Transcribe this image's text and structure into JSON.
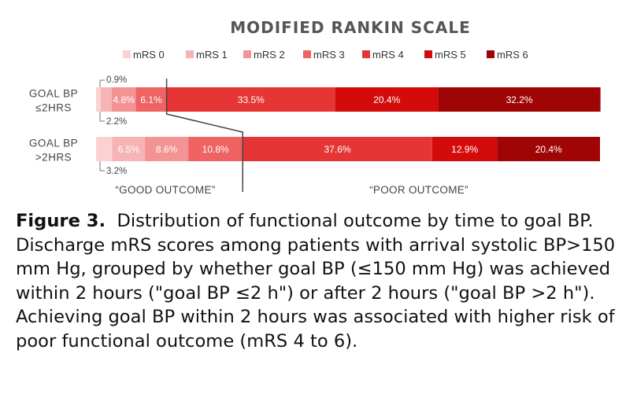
{
  "chart_data": {
    "type": "bar",
    "orientation": "horizontal-stacked-percent",
    "title": "MODIFIED RANKIN SCALE",
    "legend": [
      "mRS 0",
      "mRS 1",
      "mRS 2",
      "mRS 3",
      "mRS 4",
      "mRS 5",
      "mRS 6"
    ],
    "legend_position": "top",
    "colors": [
      "#fad2d2",
      "#f6b4b4",
      "#f39393",
      "#ef6363",
      "#e63535",
      "#d40b0b",
      "#a00505"
    ],
    "categories": [
      {
        "line1": "GOAL BP",
        "line2": "≤2HRS"
      },
      {
        "line1": "GOAL BP",
        "line2": ">2HRS"
      }
    ],
    "series": [
      {
        "name": "mRS 0",
        "values": [
          0.9,
          3.2
        ]
      },
      {
        "name": "mRS 1",
        "values": [
          2.2,
          6.5
        ]
      },
      {
        "name": "mRS 2",
        "values": [
          4.8,
          8.6
        ]
      },
      {
        "name": "mRS 3",
        "values": [
          6.1,
          10.8
        ]
      },
      {
        "name": "mRS 4",
        "values": [
          33.5,
          37.6
        ]
      },
      {
        "name": "mRS 5",
        "values": [
          20.4,
          12.9
        ]
      },
      {
        "name": "mRS 6",
        "values": [
          32.2,
          20.4
        ]
      }
    ],
    "data_labels": [
      [
        "0.9%",
        "2.2%",
        "4.8%",
        "6.1%",
        "33.5%",
        "20.4%",
        "32.2%"
      ],
      [
        "3.2%",
        "6.5%",
        "8.6%",
        "10.8%",
        "37.6%",
        "12.9%",
        "20.4%"
      ]
    ],
    "callout_labels": [
      [
        0,
        1
      ],
      [
        0
      ]
    ],
    "annotations": {
      "good": "“GOOD OUTCOME”",
      "poor": "“POOR OUTCOME”"
    },
    "xlim": [
      0,
      100
    ]
  },
  "caption": {
    "figure_label": "Figure 3.",
    "text": "Distribution of functional outcome by time to goal BP. Discharge mRS scores among patients with arrival systolic BP>150 mm Hg, grouped by whether goal BP (≤150 mm Hg) was achieved within 2 hours (\"goal BP ≤2 h\") or after 2 hours (\"goal BP >2 h\"). Achieving goal BP within 2 hours was associated with higher risk of poor functional outcome (mRS 4 to 6)."
  }
}
